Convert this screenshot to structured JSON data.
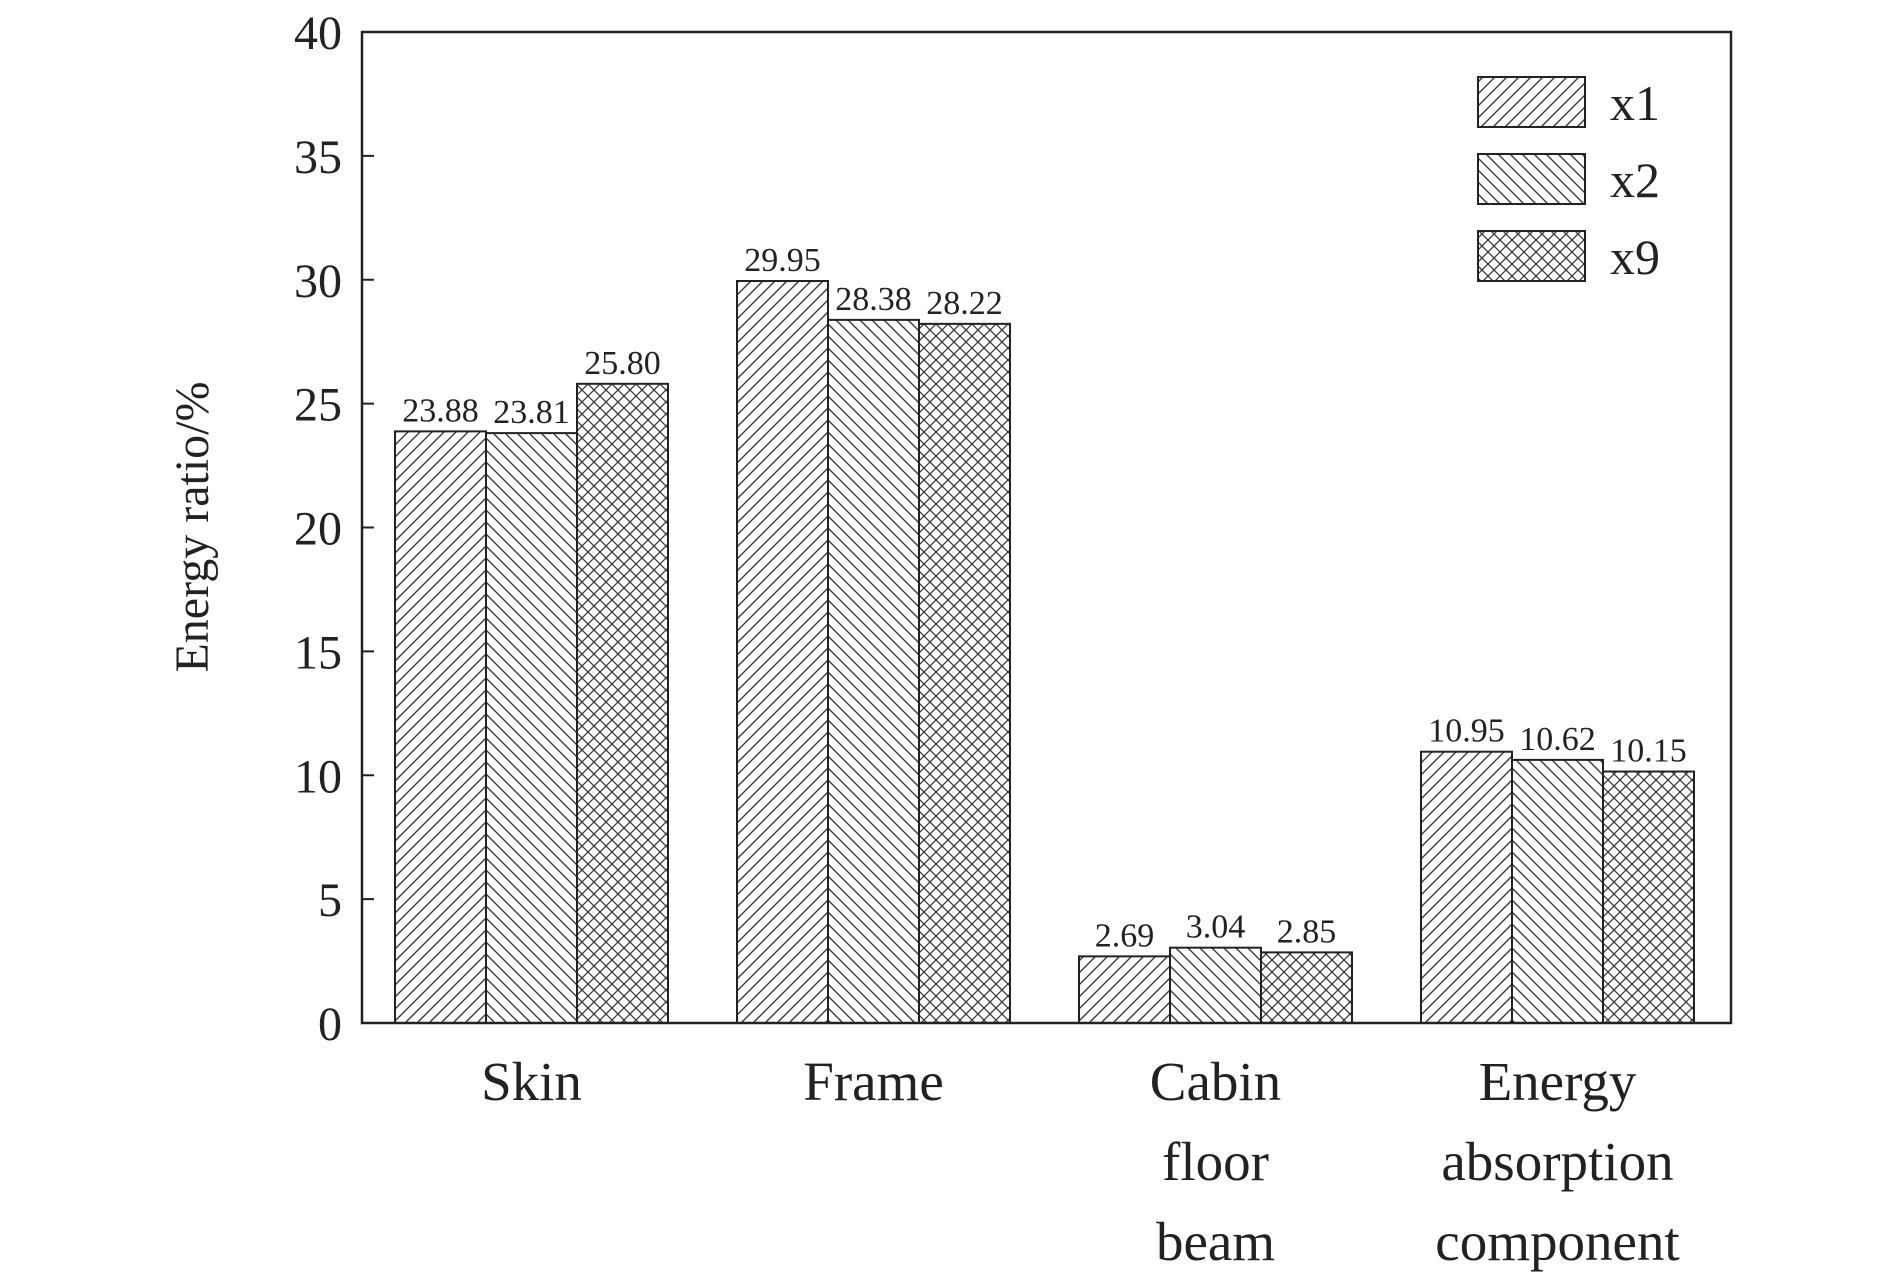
{
  "chart_data": {
    "type": "bar",
    "categories": [
      [
        "Skin"
      ],
      [
        "Frame"
      ],
      [
        "Cabin",
        "floor",
        "beam"
      ],
      [
        "Energy",
        "absorption",
        "component"
      ]
    ],
    "series": [
      {
        "name": "x1",
        "pattern": "diagonal-up",
        "values": [
          23.88,
          29.95,
          2.69,
          10.95
        ],
        "labels": [
          "23.88",
          "29.95",
          "2.69",
          "10.95"
        ]
      },
      {
        "name": "x2",
        "pattern": "diagonal-down",
        "values": [
          23.81,
          28.38,
          3.04,
          10.62
        ],
        "labels": [
          "23.81",
          "28.38",
          "3.04",
          "10.62"
        ]
      },
      {
        "name": "x9",
        "pattern": "crosshatch",
        "values": [
          25.8,
          28.22,
          2.85,
          10.15
        ],
        "labels": [
          "25.80",
          "28.22",
          "2.85",
          "10.15"
        ]
      }
    ],
    "title": "",
    "xlabel": "",
    "ylabel": "Energy ratio/%",
    "ylim": [
      0,
      40
    ],
    "yticks": [
      0,
      5,
      10,
      15,
      20,
      25,
      30,
      35,
      40
    ],
    "legend_position": "top-right",
    "grid": false,
    "colors": {
      "stroke": "#222222",
      "hatch": "#3a3a3a",
      "background": "#ffffff"
    }
  }
}
